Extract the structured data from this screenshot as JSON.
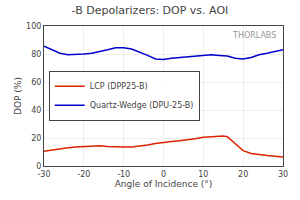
{
  "chart_data": {
    "type": "line",
    "title": "-B Depolarizers: DOP vs. AOI",
    "x_label": "Angle of Incidence (°)",
    "y_label": "DOP (%)",
    "xlim": [
      -30,
      30
    ],
    "ylim": [
      0,
      100
    ],
    "xticks": [
      -30,
      -20,
      -10,
      0,
      10,
      20,
      30
    ],
    "yticks": [
      0,
      20,
      40,
      60,
      80,
      100
    ],
    "grid": true,
    "legend": "upper left",
    "annotations": [
      "THORLABS"
    ],
    "series": [
      {
        "name": "LCP (DPP25-B)",
        "color": "#dd2200",
        "x": [
          -30,
          -28,
          -26,
          -24,
          -22,
          -20,
          -18,
          -16,
          -14,
          -12,
          -10,
          -8,
          -6,
          -4,
          -2,
          0,
          2,
          4,
          6,
          8,
          10,
          12,
          14,
          15,
          16,
          18,
          20,
          22,
          24,
          26,
          28,
          30
        ],
        "values": [
          10.5,
          11.5,
          12.5,
          13.0,
          13.5,
          14.0,
          14.5,
          14.5,
          14.0,
          13.5,
          13.5,
          13.5,
          14.0,
          15.0,
          16.0,
          17.0,
          17.5,
          18.0,
          18.5,
          19.5,
          20.5,
          21.0,
          21.5,
          21.5,
          21.0,
          16.0,
          11.0,
          9.0,
          8.0,
          7.5,
          7.0,
          6.5
        ]
      },
      {
        "name": "Quartz-Wedge (DPU-25-B)",
        "color": "#0000cc",
        "x": [
          -30,
          -28,
          -26,
          -24,
          -22,
          -20,
          -18,
          -16,
          -14,
          -12,
          -10,
          -8,
          -6,
          -4,
          -2,
          0,
          2,
          4,
          6,
          8,
          10,
          12,
          14,
          16,
          18,
          20,
          22,
          24,
          26,
          28,
          30
        ],
        "values": [
          85.5,
          83.0,
          80.5,
          79.5,
          79.5,
          80.0,
          80.5,
          81.5,
          83.0,
          84.5,
          84.5,
          83.5,
          81.5,
          79.0,
          76.5,
          76.0,
          77.0,
          77.5,
          78.0,
          78.5,
          79.0,
          79.5,
          79.0,
          78.5,
          77.0,
          76.5,
          77.5,
          79.5,
          80.5,
          82.0,
          83.0
        ]
      }
    ]
  }
}
